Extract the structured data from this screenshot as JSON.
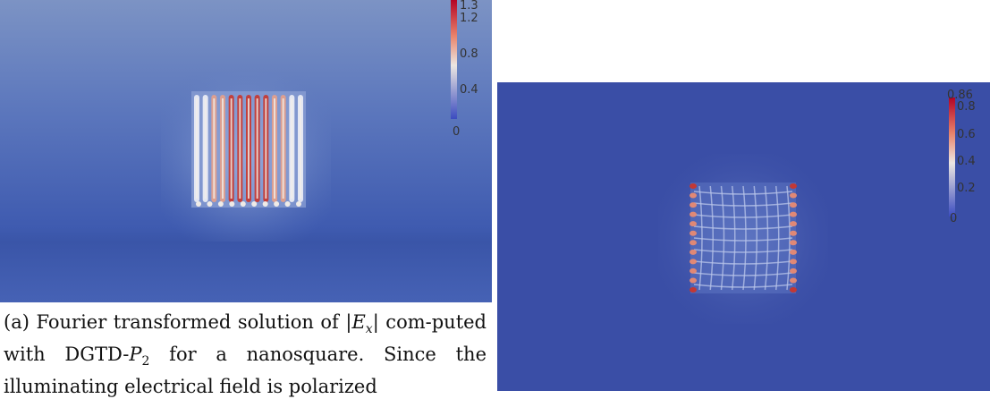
{
  "figure_a": {
    "colorbar_ticks": [
      "1.3",
      "1.2",
      "0.8",
      "0.4",
      "0"
    ]
  },
  "figure_b": {
    "colorbar_ticks": [
      "0.86",
      "0.8",
      "0.6",
      "0.4",
      "0.2",
      "0"
    ]
  },
  "caption_a": {
    "prefix": "(a) Fourier transformed solution of ",
    "math_1": "|E",
    "math_1_sub": "x",
    "math_1_end": "|",
    "mid_1": " com-puted with DGTD-",
    "math_2": "P",
    "math_2_sub": "2",
    "mid_2": " for a nanosquare. Since the illuminating electrical field is polarized"
  },
  "colors": {
    "field_blue": "#3b4fa8",
    "background_blue": "#3a4ea6",
    "hot_red": "#c8362e",
    "mid_white": "#f0ebe7"
  }
}
